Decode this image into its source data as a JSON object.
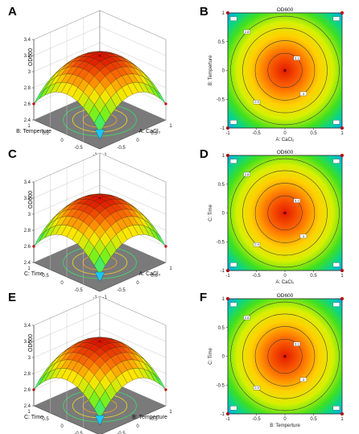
{
  "figure": {
    "panels": [
      {
        "letter": "A",
        "kind": "surface",
        "z_label": "OD600",
        "x_label": "A: CaCl₂",
        "y_label": "B: Temperture",
        "z_ticks": [
          "2.4",
          "2.6",
          "2.8",
          "3",
          "3.2",
          "3.4"
        ],
        "xy_ticks": [
          "-1",
          "-0.5",
          "0",
          "0.5",
          "1"
        ]
      },
      {
        "letter": "B",
        "kind": "contour",
        "title": "OD600",
        "x_label": "A: CaCl₂",
        "y_label": "B: Temperture",
        "ticks": [
          "-1",
          "-0.5",
          "0",
          "0.5",
          "1"
        ]
      },
      {
        "letter": "C",
        "kind": "surface",
        "z_label": "OD600",
        "x_label": "A: CaCl₂",
        "y_label": "C: Time",
        "z_ticks": [
          "2.4",
          "2.6",
          "2.8",
          "3",
          "3.2",
          "3.4"
        ],
        "xy_ticks": [
          "-1",
          "-0.5",
          "0",
          "0.5",
          "1"
        ]
      },
      {
        "letter": "D",
        "kind": "contour",
        "title": "OD600",
        "x_label": "A: CaCl₂",
        "y_label": "C: Time",
        "ticks": [
          "-1",
          "-0.5",
          "0",
          "0.5",
          "1"
        ]
      },
      {
        "letter": "E",
        "kind": "surface",
        "z_label": "OD600",
        "x_label": "B: Temperture",
        "y_label": "C: Time",
        "z_ticks": [
          "2.4",
          "2.6",
          "2.8",
          "3",
          "3.2",
          "3.4"
        ],
        "xy_ticks": [
          "-1",
          "-0.5",
          "0",
          "0.5",
          "1"
        ]
      },
      {
        "letter": "F",
        "kind": "contour",
        "title": "OD600",
        "x_label": "B: Temperture",
        "y_label": "C: Time",
        "ticks": [
          "-1",
          "-0.5",
          "0",
          "0.5",
          "1"
        ]
      }
    ]
  },
  "chart_data": [
    {
      "type": "surface",
      "panel": "A",
      "x": "A: CaCl₂",
      "y": "B: Temperture",
      "z": "OD600",
      "xlim": [
        -1,
        1
      ],
      "ylim": [
        -1,
        1
      ],
      "zlim": [
        2.4,
        3.4
      ],
      "peak": {
        "x": 0,
        "y": 0,
        "z": 3.2
      },
      "corner_z": 2.6,
      "colormap": [
        "#0080ff",
        "#00ff80",
        "#ffff00",
        "#ff8000",
        "#e00000"
      ]
    },
    {
      "type": "contour",
      "panel": "B",
      "title": "OD600",
      "x": "A: CaCl₂",
      "y": "B: Temperture",
      "xlim": [
        -1,
        1
      ],
      "ylim": [
        -1,
        1
      ],
      "center": {
        "x": 0,
        "y": 0
      },
      "contour_labels": [
        "2.8",
        "2.9",
        "3",
        "3.1"
      ],
      "grid": false
    },
    {
      "type": "surface",
      "panel": "C",
      "x": "A: CaCl₂",
      "y": "C: Time",
      "z": "OD600",
      "xlim": [
        -1,
        1
      ],
      "ylim": [
        -1,
        1
      ],
      "zlim": [
        2.4,
        3.4
      ],
      "peak": {
        "x": 0,
        "y": 0,
        "z": 3.2
      },
      "corner_z": 2.6
    },
    {
      "type": "contour",
      "panel": "D",
      "title": "OD600",
      "x": "A: CaCl₂",
      "y": "C: Time",
      "xlim": [
        -1,
        1
      ],
      "ylim": [
        -1,
        1
      ],
      "center": {
        "x": 0,
        "y": 0
      },
      "contour_labels": [
        "2.8",
        "2.9",
        "3",
        "3.1"
      ],
      "grid": false
    },
    {
      "type": "surface",
      "panel": "E",
      "x": "B: Temperture",
      "y": "C: Time",
      "z": "OD600",
      "xlim": [
        -1,
        1
      ],
      "ylim": [
        -1,
        1
      ],
      "zlim": [
        2.4,
        3.4
      ],
      "peak": {
        "x": 0,
        "y": 0,
        "z": 3.2
      },
      "corner_z": 2.6
    },
    {
      "type": "contour",
      "panel": "F",
      "title": "OD600",
      "x": "B: Temperture",
      "y": "C: Time",
      "xlim": [
        -1,
        1
      ],
      "ylim": [
        -1,
        1
      ],
      "center": {
        "x": 0,
        "y": 0
      },
      "contour_labels": [
        "2.8",
        "2.9",
        "3",
        "3.1"
      ],
      "grid": false
    }
  ]
}
